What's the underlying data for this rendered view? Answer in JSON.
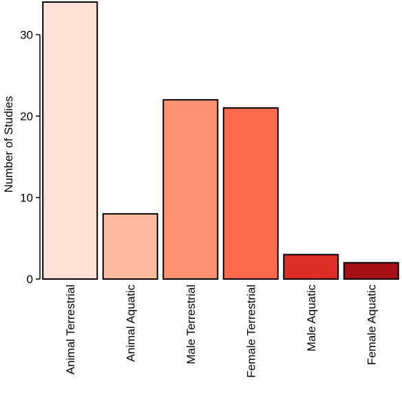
{
  "chart_data": {
    "type": "bar",
    "categories": [
      "Animal Terrestrial",
      "Animal Aquatic",
      "Male Terrestrial",
      "Female Terrestrial",
      "Male Aquatic",
      "Female Aquatic"
    ],
    "values": [
      34,
      8,
      22,
      21,
      3,
      2
    ],
    "colors": [
      "#FEE1D4",
      "#FCBBA1",
      "#FC9272",
      "#FB6A4A",
      "#DE2D26",
      "#A50F15"
    ],
    "title": "",
    "xlabel": "",
    "ylabel": "Number of Studies",
    "ylim": [
      0,
      34
    ],
    "yticks": [
      "0",
      "10",
      "20",
      "30"
    ],
    "grid": false,
    "legend": "none"
  }
}
